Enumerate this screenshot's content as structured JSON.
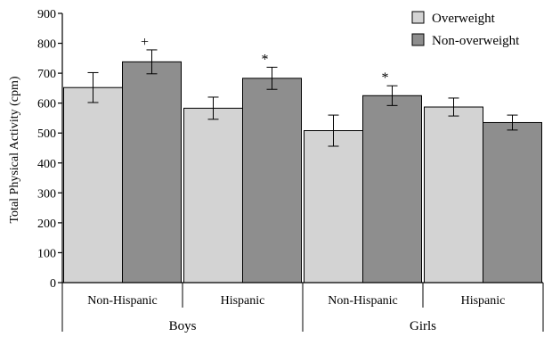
{
  "chart_data": {
    "type": "bar",
    "ylabel": "Total Physical Activity (cpm)",
    "ylim": [
      0,
      900
    ],
    "yticks": [
      0,
      100,
      200,
      300,
      400,
      500,
      600,
      700,
      800,
      900
    ],
    "grid": false,
    "legend_position": "top-right",
    "categories": [
      "Non-Hispanic",
      "Hispanic",
      "Non-Hispanic",
      "Hispanic"
    ],
    "groups": [
      {
        "label": "Boys",
        "categories": [
          0,
          1
        ]
      },
      {
        "label": "Girls",
        "categories": [
          2,
          3
        ]
      }
    ],
    "series": [
      {
        "name": "Overweight",
        "color": "#d3d3d3",
        "values": [
          652,
          583,
          508,
          587
        ],
        "errors": [
          50,
          37,
          52,
          30
        ]
      },
      {
        "name": "Non-overweight",
        "color": "#8e8e8e",
        "values": [
          738,
          683,
          625,
          535
        ],
        "errors": [
          40,
          37,
          33,
          25
        ]
      }
    ],
    "annotations": [
      {
        "category": 0,
        "series": 1,
        "text": "+"
      },
      {
        "category": 1,
        "series": 1,
        "text": "*"
      },
      {
        "category": 2,
        "series": 1,
        "text": "*"
      }
    ]
  }
}
